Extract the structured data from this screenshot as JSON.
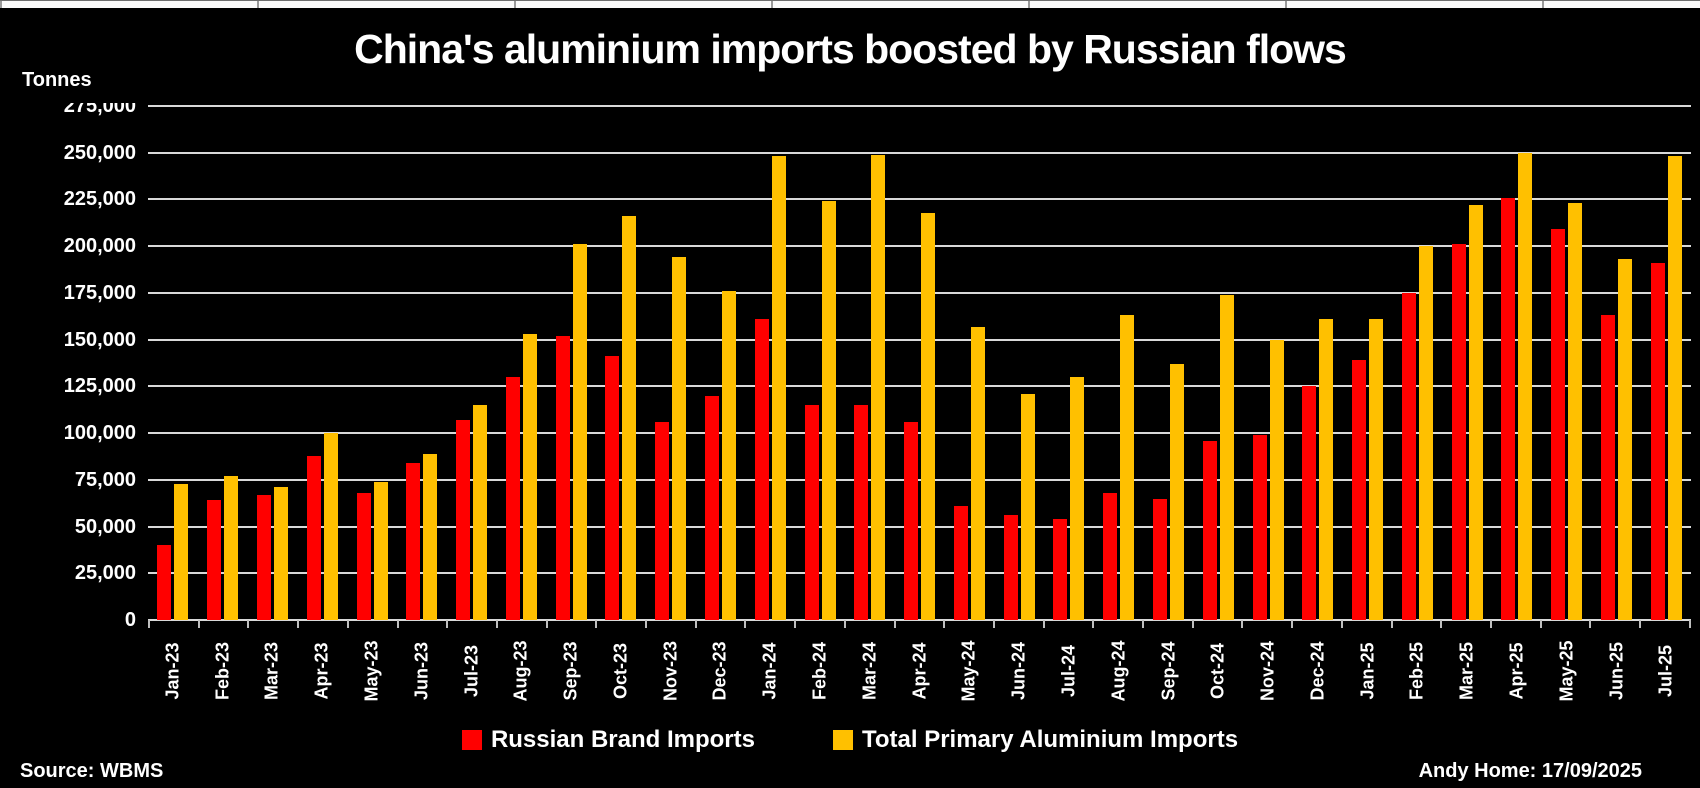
{
  "chart_data": {
    "type": "bar",
    "title": "China's aluminium imports boosted by Russian flows",
    "ylabel": "Tonnes",
    "xlabel": "",
    "ylim": [
      0,
      275000
    ],
    "ytick_step": 25000,
    "yticks": [
      "275,000",
      "250,000",
      "225,000",
      "200,000",
      "175,000",
      "150,000",
      "125,000",
      "100,000",
      "75,000",
      "50,000",
      "25,000",
      "0"
    ],
    "grid": true,
    "legend_position": "bottom",
    "background_color": "#000000",
    "gridline_color": "#d9d9d9",
    "categories": [
      "Jan-23",
      "Feb-23",
      "Mar-23",
      "Apr-23",
      "May-23",
      "Jun-23",
      "Jul-23",
      "Aug-23",
      "Sep-23",
      "Oct-23",
      "Nov-23",
      "Dec-23",
      "Jan-24",
      "Feb-24",
      "Mar-24",
      "Apr-24",
      "May-24",
      "Jun-24",
      "Jul-24",
      "Aug-24",
      "Sep-24",
      "Oct-24",
      "Nov-24",
      "Dec-24",
      "Jan-25",
      "Feb-25",
      "Mar-25",
      "Apr-25",
      "May-25",
      "Jun-25",
      "Jul-25"
    ],
    "series": [
      {
        "name": "Russian Brand Imports",
        "color": "#ff0000",
        "values": [
          40000,
          64000,
          67000,
          88000,
          68000,
          84000,
          107000,
          130000,
          152000,
          141000,
          106000,
          120000,
          161000,
          115000,
          115000,
          106000,
          61000,
          56000,
          54000,
          68000,
          65000,
          96000,
          99000,
          125000,
          139000,
          175000,
          201000,
          226000,
          209000,
          163000,
          191000
        ]
      },
      {
        "name": "Total Primary Aluminium Imports",
        "color": "#ffc000",
        "values": [
          73000,
          77000,
          71000,
          100000,
          74000,
          89000,
          115000,
          153000,
          201000,
          216000,
          194000,
          176000,
          248000,
          224000,
          249000,
          218000,
          157000,
          121000,
          130000,
          163000,
          137000,
          174000,
          150000,
          161000,
          161000,
          200000,
          222000,
          250000,
          223000,
          193000,
          248000
        ]
      }
    ]
  },
  "footer": {
    "source": "Source: WBMS",
    "credit": "Andy Home: 17/09/2025"
  }
}
